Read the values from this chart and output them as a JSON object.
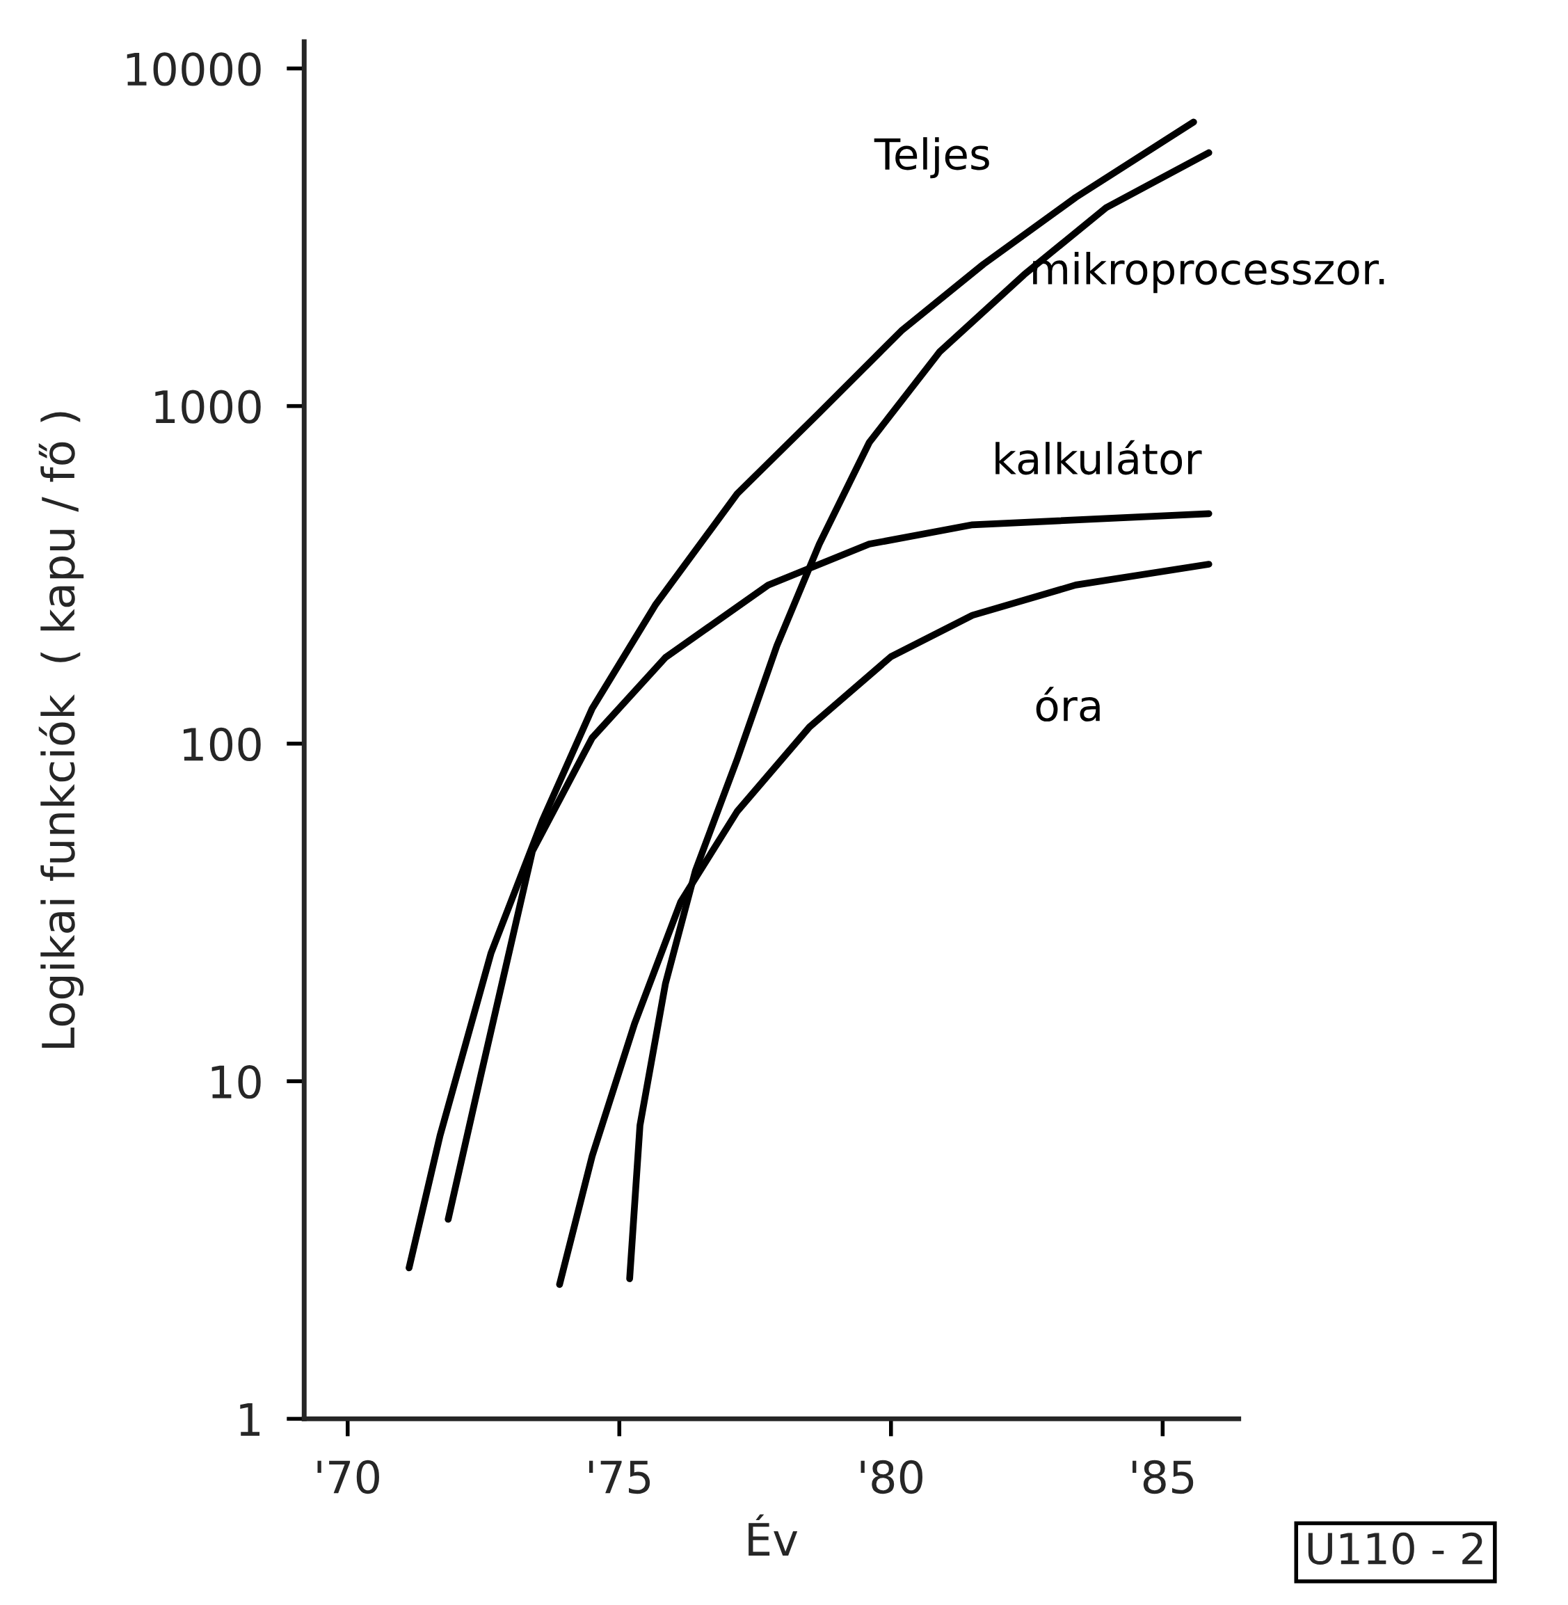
{
  "chart_data": {
    "type": "line",
    "xlabel": "Év",
    "ylabel": "Logikai funkciók  ( kapu / fő )",
    "log": "y",
    "grid": false,
    "legend": false,
    "marker": "none",
    "line_style": "solid",
    "xlim": [
      1969.2,
      1986.4
    ],
    "ylim": [
      1,
      12000
    ],
    "xticks": [
      {
        "value": 1970,
        "label": "'70"
      },
      {
        "value": 1975,
        "label": "'75"
      },
      {
        "value": 1980,
        "label": "'80"
      },
      {
        "value": 1985,
        "label": "'85"
      }
    ],
    "yticks": [
      1,
      10,
      100,
      1000,
      10000
    ],
    "series": [
      {
        "name": "Teljes",
        "color": "#000000",
        "x": [
          1971.13,
          1971.7,
          1972.64,
          1973.58,
          1974.5,
          1975.66,
          1977.17,
          1978.68,
          1980.19,
          1981.7,
          1983.4,
          1985.57
        ],
        "values": [
          2.8,
          6.9,
          24,
          59,
          127,
          257,
          550,
          955,
          1670,
          2630,
          4150,
          6940
        ]
      },
      {
        "name": "mikroprocesszor.",
        "color": "#000000",
        "x": [
          1975.19,
          1975.38,
          1975.85,
          1976.4,
          1977.17,
          1977.9,
          1978.68,
          1979.6,
          1980.9,
          1982.45,
          1983.96,
          1985.85
        ],
        "values": [
          2.6,
          7.4,
          19.5,
          42,
          90,
          195,
          390,
          780,
          1450,
          2450,
          3870,
          5630
        ]
      },
      {
        "name": "kalkulátor",
        "color": "#000000",
        "x": [
          1971.85,
          1972.45,
          1973.4,
          1974.5,
          1975.85,
          1977.74,
          1979.6,
          1981.5,
          1985.85
        ],
        "values": [
          3.9,
          10.4,
          48,
          104,
          180,
          295,
          390,
          445,
          480
        ]
      },
      {
        "name": "óra",
        "color": "#000000",
        "x": [
          1973.9,
          1974.5,
          1975.28,
          1976.13,
          1977.17,
          1978.5,
          1980.0,
          1981.5,
          1983.4,
          1985.85
        ],
        "values": [
          2.5,
          6,
          14.8,
          34,
          63,
          112,
          181,
          240,
          295,
          340
        ]
      }
    ],
    "annotations": [
      "U110 - 2"
    ]
  }
}
